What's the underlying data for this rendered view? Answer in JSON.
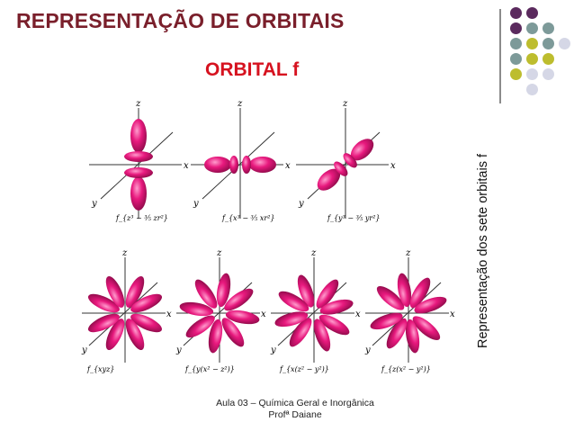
{
  "slide": {
    "title": "REPRESENTAÇÃO DE ORBITAIS",
    "subtitle": "ORBITAL f",
    "side_caption": "Representação dos sete orbitais f",
    "footer_line1": "Aula 03 – Química Geral e Inorgânica",
    "footer_line2": "Profª Daiane"
  },
  "figure": {
    "axis_x": "x",
    "axis_y": "y",
    "axis_z": "z",
    "orbital_labels": [
      "f_{z³ − ³⁄₅ zr²}",
      "f_{x³ − ³⁄₅ xr²}",
      "f_{y³ − ³⁄₅ yr²}",
      "f_{xyz}",
      "f_{y(x² − z²)}",
      "f_{x(z² − y²)}",
      "f_{z(x² − y²)}"
    ]
  },
  "colors": {
    "title": "#7a1f2b",
    "subtitle": "#d6121f",
    "lobe": "#e8197e",
    "dot_purple": "#5b2a5e",
    "dot_teal": "#7d9a99",
    "dot_olive": "#bdbd2e",
    "dot_grey": "#d5d7e6"
  }
}
